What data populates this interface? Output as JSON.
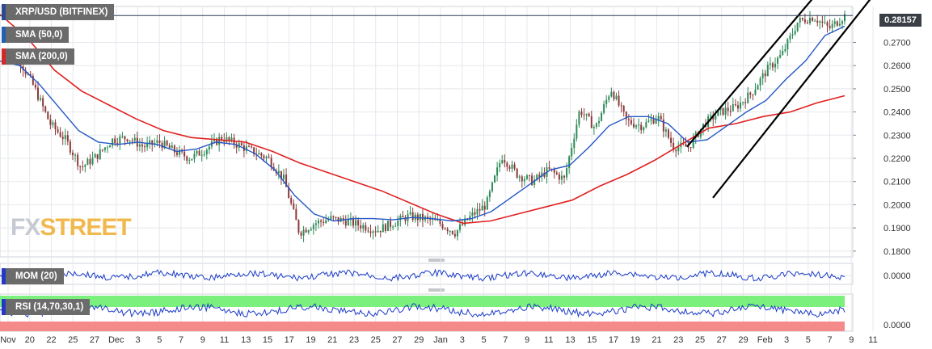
{
  "header": {
    "symbol_label": "XRP/USD (BITFINEX)",
    "sma50_label": "SMA (50,0)",
    "sma200_label": "SMA (200,0)",
    "last_price": "0.28157"
  },
  "watermark": {
    "fx": "FX",
    "street": "STREET"
  },
  "colors": {
    "bull_candle": "#2e8b57",
    "bear_candle": "#8b3a3a",
    "sma50": "#2457c5",
    "sma200": "#e02020",
    "channel": "#000000",
    "grid": "#e6e8ed",
    "indicator_line": "#1a3ac8",
    "rsi_overbought": "#7cf07c",
    "rsi_oversold": "#f58a8a"
  },
  "chart_data": [
    {
      "type": "candlestick",
      "title": "XRP/USD (BITFINEX)",
      "x_ticks": [
        "Nov",
        "20",
        "22",
        "25",
        "27",
        "Dec",
        "3",
        "5",
        "7",
        "9",
        "11",
        "13",
        "15",
        "17",
        "19",
        "21",
        "23",
        "25",
        "27",
        "29",
        "Jan",
        "3",
        "5",
        "7",
        "9",
        "11",
        "13",
        "15",
        "17",
        "19",
        "21",
        "23",
        "25",
        "27",
        "29",
        "Feb",
        "3",
        "5",
        "7",
        "9",
        "11"
      ],
      "y_ticks": [
        "0.2700",
        "0.2600",
        "0.2500",
        "0.2400",
        "0.2300",
        "0.2200",
        "0.2100",
        "0.2000",
        "0.1900",
        "0.1800"
      ],
      "ylim": [
        0.1775,
        0.2855
      ],
      "last_value": 0.28157,
      "close_path": [
        0.2655,
        0.263,
        0.2505,
        0.235,
        0.228,
        0.216,
        0.221,
        0.228,
        0.229,
        0.225,
        0.227,
        0.223,
        0.22,
        0.224,
        0.229,
        0.226,
        0.223,
        0.22,
        0.211,
        0.188,
        0.192,
        0.194,
        0.193,
        0.191,
        0.189,
        0.192,
        0.195,
        0.194,
        0.192,
        0.188,
        0.195,
        0.2,
        0.221,
        0.213,
        0.21,
        0.215,
        0.211,
        0.241,
        0.233,
        0.25,
        0.236,
        0.234,
        0.238,
        0.225,
        0.225,
        0.235,
        0.24,
        0.242,
        0.248,
        0.258,
        0.265,
        0.279,
        0.281,
        0.276,
        0.2816
      ],
      "sma50_path": [
        0.262,
        0.26,
        0.252,
        0.242,
        0.232,
        0.227,
        0.226,
        0.227,
        0.226,
        0.223,
        0.224,
        0.227,
        0.226,
        0.222,
        0.215,
        0.204,
        0.196,
        0.193,
        0.194,
        0.194,
        0.1935,
        0.1945,
        0.194,
        0.193,
        0.194,
        0.197,
        0.203,
        0.209,
        0.215,
        0.217,
        0.225,
        0.234,
        0.238,
        0.238,
        0.235,
        0.227,
        0.228,
        0.234,
        0.24,
        0.245,
        0.254,
        0.262,
        0.273,
        0.277
      ],
      "sma200_path": [
        0.282,
        0.272,
        0.258,
        0.249,
        0.243,
        0.237,
        0.232,
        0.229,
        0.228,
        0.227,
        0.223,
        0.218,
        0.214,
        0.21,
        0.206,
        0.201,
        0.196,
        0.192,
        0.193,
        0.196,
        0.199,
        0.202,
        0.208,
        0.213,
        0.219,
        0.226,
        0.233,
        0.235,
        0.238,
        0.24,
        0.244,
        0.247
      ],
      "channel": {
        "upper": [
          [
            0.225,
            0.29
          ]
        ],
        "lower": [
          [
            0.203,
            0.291
          ]
        ]
      },
      "series": [
        {
          "name": "SMA (50,0)"
        },
        {
          "name": "SMA (200,0)"
        }
      ]
    },
    {
      "type": "line",
      "title": "MOM (20)",
      "y_ticks": [
        "0.0000"
      ],
      "values_note": "momentum oscillates around zero"
    },
    {
      "type": "line",
      "title": "RSI (14,70,30,1)",
      "y_ticks": [
        "0.0000"
      ],
      "bands": [
        "overbought",
        "oversold"
      ]
    }
  ],
  "indicators": {
    "mom_label": "MOM (20)",
    "rsi_label": "RSI (14,70,30,1)",
    "mom_zero": "0.0000",
    "rsi_zero": "0.0000"
  }
}
